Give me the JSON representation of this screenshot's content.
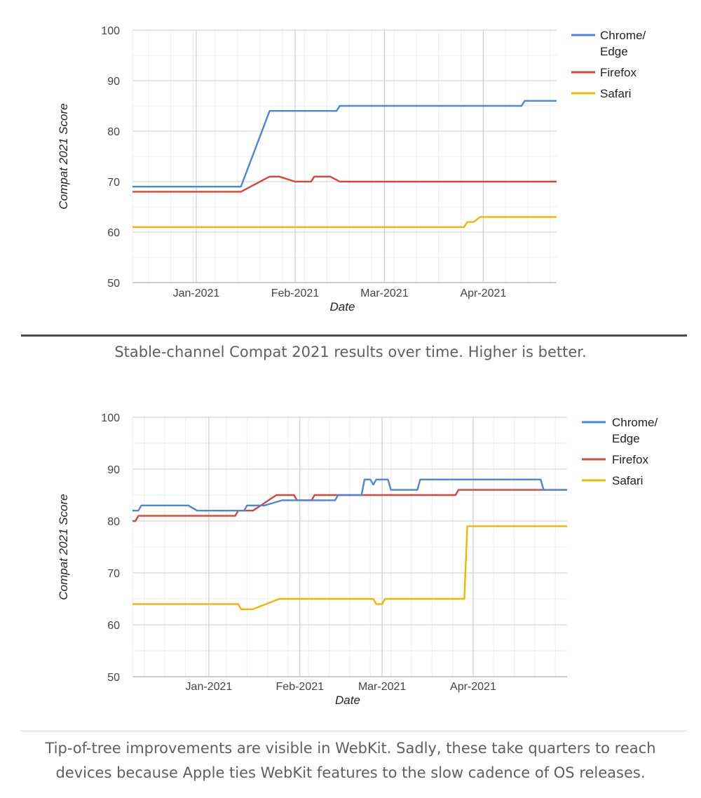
{
  "chart_data": [
    {
      "type": "line",
      "xlabel": "Date",
      "ylabel": "Compat 2021 Score",
      "ylim": [
        50,
        100
      ],
      "yticks": [
        "100",
        "90",
        "80",
        "70",
        "60",
        "50"
      ],
      "xticks": [
        "Jan-2021",
        "Feb-2021",
        "Mar-2021",
        "Apr-2021"
      ],
      "grid": true,
      "legend_position": "right",
      "series": [
        {
          "name": "Chrome/\nEdge",
          "color": "#4a86e0",
          "points": [
            [
              "2020-12-12",
              69
            ],
            [
              "2021-01-15",
              69
            ],
            [
              "2021-01-24",
              84
            ],
            [
              "2021-02-14",
              84
            ],
            [
              "2021-02-15",
              85
            ],
            [
              "2021-04-13",
              85
            ],
            [
              "2021-04-14",
              86
            ],
            [
              "2021-04-24",
              86
            ]
          ]
        },
        {
          "name": "Firefox",
          "color": "#db4437",
          "points": [
            [
              "2020-12-12",
              68
            ],
            [
              "2021-01-15",
              68
            ],
            [
              "2021-01-24",
              71
            ],
            [
              "2021-01-27",
              71
            ],
            [
              "2021-02-01",
              70
            ],
            [
              "2021-02-06",
              70
            ],
            [
              "2021-02-07",
              71
            ],
            [
              "2021-02-12",
              71
            ],
            [
              "2021-02-15",
              70
            ],
            [
              "2021-04-24",
              70
            ]
          ]
        },
        {
          "name": "Safari",
          "color": "#f4b400",
          "points": [
            [
              "2020-12-12",
              61
            ],
            [
              "2021-03-26",
              61
            ],
            [
              "2021-03-27",
              62
            ],
            [
              "2021-03-29",
              62
            ],
            [
              "2021-03-31",
              63
            ],
            [
              "2021-04-24",
              63
            ]
          ]
        }
      ]
    },
    {
      "type": "line",
      "xlabel": "Date",
      "ylabel": "Compat 2021 Score",
      "ylim": [
        50,
        100
      ],
      "yticks": [
        "100",
        "90",
        "80",
        "70",
        "60",
        "50"
      ],
      "xticks": [
        "Jan-2021",
        "Feb-2021",
        "Mar-2021",
        "Apr-2021"
      ],
      "grid": true,
      "legend_position": "right",
      "series": [
        {
          "name": "Chrome/\nEdge",
          "color": "#4a86e0",
          "points": [
            [
              "2020-12-06",
              82
            ],
            [
              "2020-12-08",
              82
            ],
            [
              "2020-12-09",
              83
            ],
            [
              "2020-12-25",
              83
            ],
            [
              "2020-12-28",
              82
            ],
            [
              "2021-01-13",
              82
            ],
            [
              "2021-01-14",
              83
            ],
            [
              "2021-01-20",
              83
            ],
            [
              "2021-01-26",
              84
            ],
            [
              "2021-02-13",
              84
            ],
            [
              "2021-02-14",
              85
            ],
            [
              "2021-02-22",
              85
            ],
            [
              "2021-02-23",
              88
            ],
            [
              "2021-02-25",
              88
            ],
            [
              "2021-02-26",
              87
            ],
            [
              "2021-02-27",
              88
            ],
            [
              "2021-03-03",
              88
            ],
            [
              "2021-03-04",
              86
            ],
            [
              "2021-03-13",
              86
            ],
            [
              "2021-03-14",
              88
            ],
            [
              "2021-04-24",
              88
            ],
            [
              "2021-04-25",
              86
            ],
            [
              "2021-05-03",
              86
            ]
          ]
        },
        {
          "name": "Firefox",
          "color": "#db4437",
          "points": [
            [
              "2020-12-06",
              80
            ],
            [
              "2020-12-07",
              80
            ],
            [
              "2020-12-08",
              81
            ],
            [
              "2021-01-10",
              81
            ],
            [
              "2021-01-11",
              82
            ],
            [
              "2021-01-16",
              82
            ],
            [
              "2021-01-24",
              85
            ],
            [
              "2021-01-30",
              85
            ],
            [
              "2021-01-31",
              84
            ],
            [
              "2021-02-05",
              84
            ],
            [
              "2021-02-06",
              85
            ],
            [
              "2021-03-26",
              85
            ],
            [
              "2021-03-27",
              86
            ],
            [
              "2021-05-03",
              86
            ]
          ]
        },
        {
          "name": "Safari",
          "color": "#f4b400",
          "points": [
            [
              "2020-12-06",
              64
            ],
            [
              "2021-01-11",
              64
            ],
            [
              "2021-01-12",
              63
            ],
            [
              "2021-01-16",
              63
            ],
            [
              "2021-01-25",
              65
            ],
            [
              "2021-02-26",
              65
            ],
            [
              "2021-02-27",
              64
            ],
            [
              "2021-03-01",
              64
            ],
            [
              "2021-03-02",
              65
            ],
            [
              "2021-03-29",
              65
            ],
            [
              "2021-03-30",
              79
            ],
            [
              "2021-05-03",
              79
            ]
          ]
        }
      ]
    }
  ],
  "captions": {
    "first": "Stable-channel Compat 2021 results over time. Higher is better.",
    "second_line1": "Tip-of-tree improvements are visible in WebKit. Sadly, these take quarters to reach",
    "second_line2": "devices because Apple ties WebKit features to the slow cadence of OS releases."
  }
}
